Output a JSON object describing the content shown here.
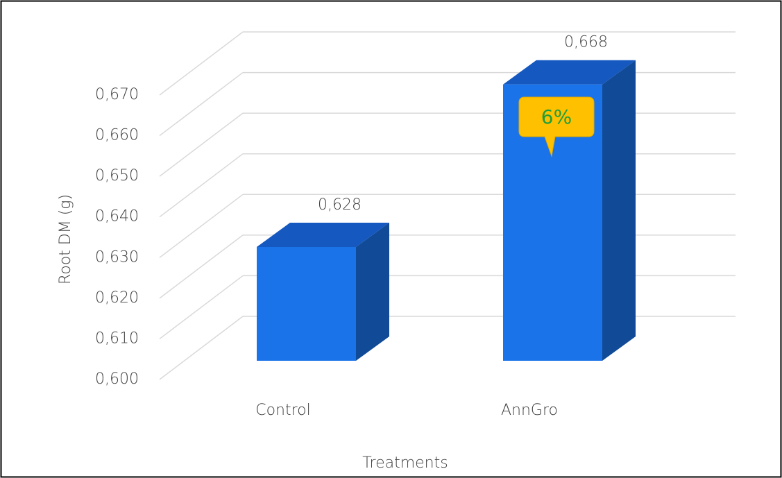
{
  "chart_data": {
    "type": "bar3d",
    "x_label": "Treatments",
    "y_label": "Root DM (g)",
    "categories": [
      "Control",
      "AnnGro"
    ],
    "values": [
      0.628,
      0.668
    ],
    "value_labels": [
      "0,628",
      "0,668"
    ],
    "color": "#1a73e8",
    "ylim": [
      0.6,
      0.67
    ],
    "yticks": [
      {
        "value": 0.6,
        "label": "0,600"
      },
      {
        "value": 0.61,
        "label": "0,610"
      },
      {
        "value": 0.62,
        "label": "0,620"
      },
      {
        "value": 0.63,
        "label": "0,630"
      },
      {
        "value": 0.64,
        "label": "0,640"
      },
      {
        "value": 0.65,
        "label": "0,650"
      },
      {
        "value": 0.66,
        "label": "0,660"
      },
      {
        "value": 0.67,
        "label": "0,670"
      }
    ],
    "grid": true,
    "annotation": "6%"
  }
}
